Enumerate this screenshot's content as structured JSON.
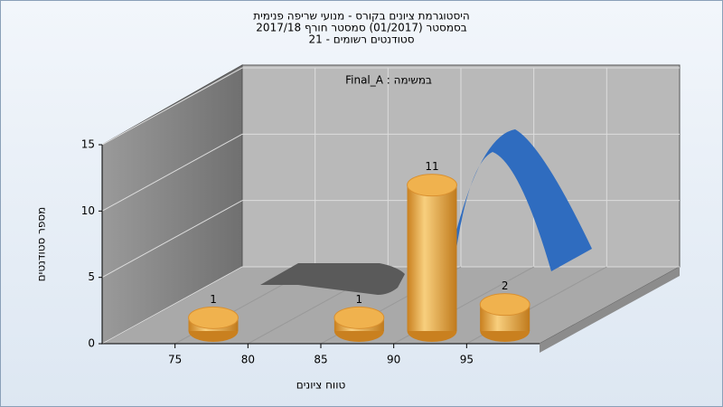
{
  "chart_data": {
    "type": "histogram",
    "title": [
      "היסטוגרמת ציונים בקורס - מנועי שריפה פנימית",
      "בסמסטר (01/2017) סמסטר חורף 2017/18",
      "סטודנטים רשומים - 21"
    ],
    "annotation": "במשימה : Final_A",
    "bins": [
      75,
      80,
      85,
      90,
      95,
      100
    ],
    "values": [
      1,
      0,
      1,
      11,
      2
    ],
    "color": "#e8a23c",
    "xlim": [
      70,
      100
    ],
    "xticks": [
      75,
      80,
      85,
      90,
      95
    ],
    "ylim": [
      0,
      15
    ],
    "yticks": [
      0,
      5,
      10,
      15
    ],
    "xlabel": "טווח ציונים",
    "ylabel": "מספר סטודנטים",
    "grid": true
  }
}
